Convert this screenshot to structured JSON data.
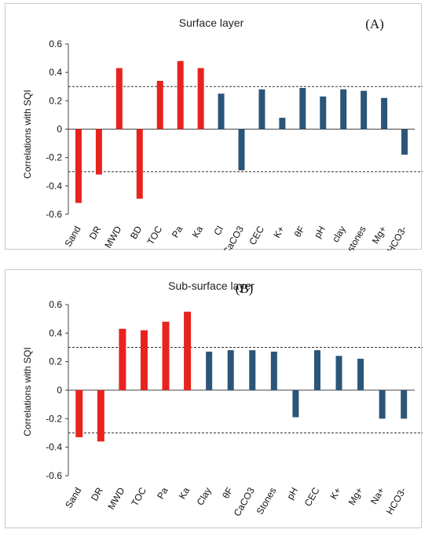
{
  "colors": {
    "significant": "#e8231e",
    "other": "#2b5579",
    "axis": "#444444",
    "threshold": "#333333"
  },
  "chart_data": [
    {
      "type": "bar",
      "title": "Surface layer",
      "panel_label": "(A)",
      "ylabel": "Correlations with SQI",
      "ylim": [
        -0.6,
        0.6
      ],
      "yticks": [
        -0.6,
        -0.4,
        -0.2,
        0,
        0.2,
        0.4,
        0.6
      ],
      "ytick_labels": [
        "-0.6",
        "-0.4",
        "-0.2",
        "0",
        "0.2",
        "0.4",
        "0.6"
      ],
      "threshold_lines": [
        0.3,
        -0.3
      ],
      "categories": [
        "Sand",
        "DR",
        "MWD",
        "BD",
        "TOC",
        "Pa",
        "Ka",
        "Cl",
        "CaCO3",
        "CEC",
        "K+",
        "θF",
        "pH",
        "clay",
        "stones",
        "Mg+",
        "HCO3-"
      ],
      "values": [
        -0.52,
        -0.32,
        0.43,
        -0.49,
        0.34,
        0.48,
        0.43,
        0.25,
        -0.29,
        0.28,
        0.08,
        0.29,
        0.23,
        0.28,
        0.27,
        0.22,
        -0.18
      ],
      "significant": [
        true,
        true,
        true,
        true,
        true,
        true,
        true,
        false,
        false,
        false,
        false,
        false,
        false,
        false,
        false,
        false,
        false
      ]
    },
    {
      "type": "bar",
      "title": "Sub-surface layer",
      "panel_label": "(B)",
      "ylabel": "Correlations with SQI",
      "ylim": [
        -0.6,
        0.6
      ],
      "yticks": [
        -0.6,
        -0.4,
        -0.2,
        0,
        0.2,
        0.4,
        0.6
      ],
      "ytick_labels": [
        "-0.6",
        "-0.4",
        "-0.2",
        "0",
        "0.2",
        "0.4",
        "0.6"
      ],
      "threshold_lines": [
        0.3,
        -0.3
      ],
      "categories": [
        "Sand",
        "DR",
        "MWD",
        "TOC",
        "Pa",
        "Ka",
        "Clay",
        "θF",
        "CaCO3",
        "Stones",
        "pH",
        "CEC",
        "K+",
        "Mg+",
        "Na+",
        "HCO3-"
      ],
      "values": [
        -0.33,
        -0.36,
        0.43,
        0.42,
        0.48,
        0.55,
        0.27,
        0.28,
        0.28,
        0.27,
        -0.19,
        0.28,
        0.24,
        0.22,
        -0.2,
        -0.2
      ],
      "significant": [
        true,
        true,
        true,
        true,
        true,
        true,
        false,
        false,
        false,
        false,
        false,
        false,
        false,
        false,
        false,
        false
      ]
    }
  ]
}
